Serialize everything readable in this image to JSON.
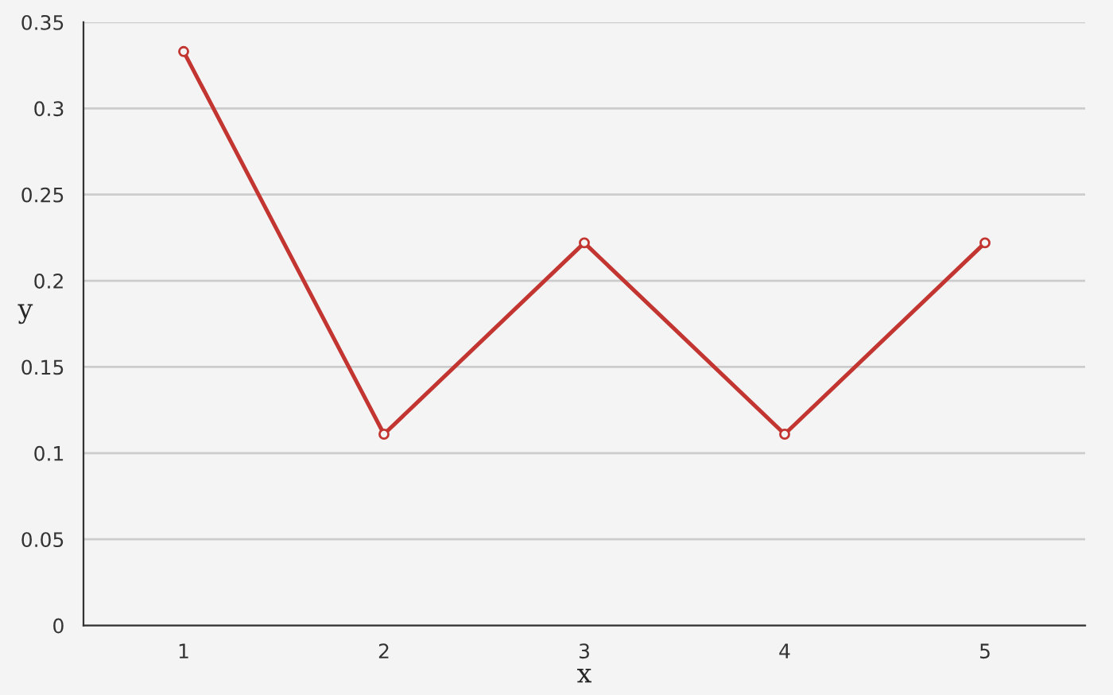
{
  "chart_data": {
    "type": "line",
    "xlabel": "x",
    "ylabel": "y",
    "categories": [
      "1",
      "2",
      "3",
      "4",
      "5"
    ],
    "series": [
      {
        "color": "#c23531",
        "values": [
          0.333,
          0.111,
          0.222,
          0.111,
          0.222
        ]
      }
    ],
    "ylim": [
      0,
      0.35
    ],
    "yticks": [
      0,
      0.05,
      0.1,
      0.15,
      0.2,
      0.25,
      0.3,
      0.35
    ],
    "grid": "y",
    "marker": "circle",
    "line_style": "solid",
    "legend": false
  }
}
